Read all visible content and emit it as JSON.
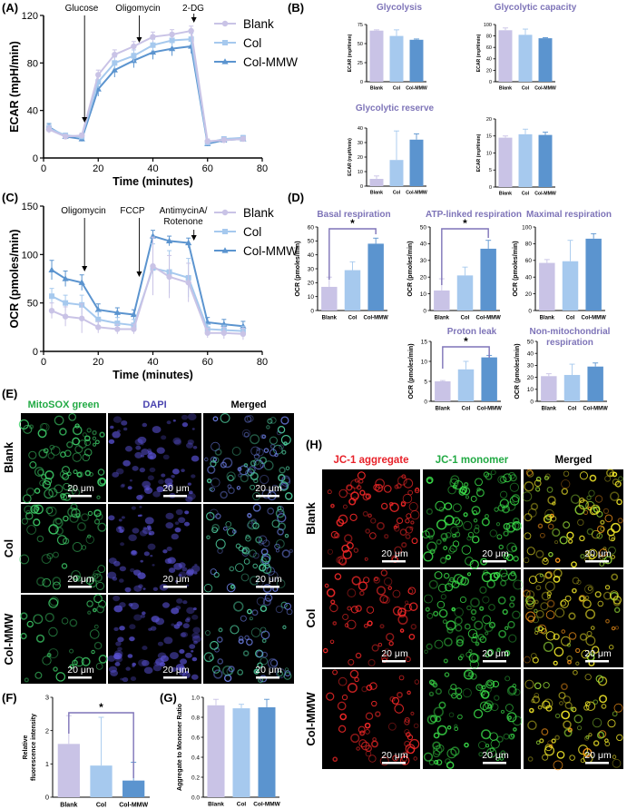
{
  "colors": {
    "blank": "#c9c3e6",
    "col": "#a6c9ee",
    "colmmw": "#5b94cf",
    "title_purple": "#7e74b8",
    "mito_green": "#22aa44",
    "dapi_blue": "#4b45b0",
    "jc_red": "#e8222a",
    "jc_green": "#22aa44",
    "micro_bg": "#000000"
  },
  "legend": [
    "Blank",
    "Col",
    "Col-MMW"
  ],
  "chart_data": [
    {
      "id": "A",
      "type": "line",
      "panel_label": "(A)",
      "xlabel": "Time (minutes)",
      "ylabel": "ECAR (mpH/min)",
      "xlim": [
        0,
        80
      ],
      "ylim": [
        0,
        120
      ],
      "xticks": [
        0,
        20,
        40,
        60,
        80
      ],
      "yticks": [
        0,
        40,
        80,
        120
      ],
      "x": [
        2,
        8,
        14,
        20,
        26,
        33,
        40,
        47,
        54,
        60,
        66,
        73
      ],
      "series": [
        {
          "name": "Blank",
          "values": [
            24,
            18,
            19,
            70,
            87,
            94,
            102,
            104,
            107,
            14,
            15,
            16
          ],
          "err": [
            3,
            2,
            2,
            4,
            4,
            4,
            4,
            4,
            4,
            2,
            2,
            2
          ]
        },
        {
          "name": "Col",
          "values": [
            25,
            19,
            18,
            64,
            80,
            86,
            95,
            99,
            100,
            13,
            16,
            17
          ],
          "err": [
            3,
            2,
            2,
            5,
            5,
            5,
            5,
            5,
            5,
            2,
            2,
            2
          ]
        },
        {
          "name": "Col-MMW",
          "values": [
            26,
            18,
            16,
            58,
            74,
            82,
            89,
            92,
            94,
            12,
            15,
            16
          ],
          "err": [
            3,
            2,
            2,
            6,
            6,
            6,
            6,
            6,
            6,
            2,
            2,
            2
          ]
        }
      ],
      "annotations": [
        {
          "label": "Glucose",
          "x": 15
        },
        {
          "label": "Oligomycin",
          "x": 35
        },
        {
          "label": "2-DG",
          "x": 55
        }
      ]
    },
    {
      "id": "C",
      "type": "line",
      "panel_label": "(C)",
      "xlabel": "Time (minutes)",
      "ylabel": "OCR (pmoles/min)",
      "xlim": [
        0,
        80
      ],
      "ylim": [
        0,
        150
      ],
      "xticks": [
        0,
        20,
        40,
        60,
        80
      ],
      "yticks": [
        0,
        50,
        100,
        150
      ],
      "x": [
        3,
        8,
        14,
        20,
        27,
        33,
        40,
        46,
        53,
        60,
        66,
        73
      ],
      "series": [
        {
          "name": "Blank",
          "values": [
            42,
            36,
            34,
            25,
            23,
            23,
            88,
            77,
            71,
            19,
            19,
            18
          ],
          "err": [
            8,
            10,
            15,
            6,
            5,
            5,
            30,
            22,
            20,
            5,
            6,
            6
          ]
        },
        {
          "name": "Col",
          "values": [
            57,
            50,
            48,
            33,
            29,
            27,
            86,
            82,
            76,
            23,
            22,
            21
          ],
          "err": [
            8,
            8,
            10,
            8,
            6,
            6,
            25,
            22,
            20,
            5,
            5,
            5
          ]
        },
        {
          "name": "Col-MMW",
          "values": [
            84,
            75,
            71,
            43,
            40,
            38,
            119,
            114,
            112,
            30,
            28,
            26
          ],
          "err": [
            10,
            8,
            8,
            6,
            5,
            5,
            6,
            5,
            5,
            5,
            5,
            5
          ]
        }
      ],
      "annotations": [
        {
          "label": "Oligomycin",
          "x": 15
        },
        {
          "label": "FCCP",
          "x": 35
        },
        {
          "label": "AntimycinA/",
          "label2": "Rotenone",
          "x": 55
        }
      ]
    },
    {
      "id": "B",
      "type": "bar",
      "panel_label": "(B)",
      "subplots": [
        {
          "title": "Glycolysis",
          "ylabel": "ECAR (mpH/min)",
          "ylim": [
            0,
            75
          ],
          "yticks": [
            0,
            25,
            50,
            75
          ],
          "values": [
            67,
            60,
            55
          ],
          "err": [
            1,
            8,
            1
          ]
        },
        {
          "title": "Glycolytic capacity",
          "ylabel": "ECAR (mpH/min)",
          "ylim": [
            0,
            100
          ],
          "yticks": [
            0,
            20,
            40,
            60,
            80,
            100
          ],
          "values": [
            90,
            82,
            76
          ],
          "err": [
            4,
            10,
            1
          ]
        },
        {
          "title": "Glycolytic reserve",
          "ylabel": "ECAR (mpH/min)",
          "ylim": [
            0,
            40
          ],
          "yticks": [
            0,
            10,
            20,
            30,
            40
          ],
          "values": [
            5,
            18,
            32
          ],
          "err": [
            2,
            20,
            4
          ]
        },
        {
          "title": "",
          "ylabel": "ECAR (mpH/min)",
          "ylim": [
            0,
            20
          ],
          "yticks": [
            0,
            5,
            10,
            15,
            20
          ],
          "values": [
            14.5,
            15.5,
            15.3
          ],
          "err": [
            0.5,
            1.5,
            0.8
          ]
        }
      ]
    },
    {
      "id": "D",
      "type": "bar",
      "panel_label": "(D)",
      "subplots": [
        {
          "title": "Basal respiration",
          "ylabel": "OCR (pmoles/min)",
          "ylim": [
            0,
            60
          ],
          "yticks": [
            0,
            10,
            20,
            30,
            40,
            50,
            60
          ],
          "values": [
            17,
            29,
            48
          ],
          "err": [
            7,
            6,
            4
          ],
          "sig": [
            0,
            2,
            "*"
          ]
        },
        {
          "title": "ATP-linked respiration",
          "ylabel": "OCR (pmoles/min)",
          "ylim": [
            0,
            50
          ],
          "yticks": [
            0,
            10,
            20,
            30,
            40,
            50
          ],
          "values": [
            12,
            21,
            37
          ],
          "err": [
            7,
            5,
            5
          ],
          "sig": [
            0,
            2,
            "*"
          ]
        },
        {
          "title": "Maximal respiration",
          "ylabel": "OCR (pmoles/min)",
          "ylim": [
            0,
            100
          ],
          "yticks": [
            0,
            20,
            40,
            60,
            80,
            100
          ],
          "values": [
            57,
            59,
            86
          ],
          "err": [
            4,
            25,
            6
          ]
        },
        {
          "title": "Proton leak",
          "ylabel": "OCR (pmoles/min)",
          "ylim": [
            0,
            15
          ],
          "yticks": [
            0,
            5,
            10,
            15
          ],
          "values": [
            5,
            8,
            11
          ],
          "err": [
            0.2,
            2,
            0.5
          ],
          "sig": [
            0,
            2,
            "*"
          ]
        },
        {
          "title": "Non-mitochondrial",
          "title2": "respiration",
          "ylabel": "OCR (pmoles/min)",
          "ylim": [
            0,
            50
          ],
          "yticks": [
            0,
            10,
            20,
            30,
            40,
            50
          ],
          "values": [
            21,
            22,
            29
          ],
          "err": [
            2,
            9,
            3
          ]
        }
      ]
    },
    {
      "id": "F",
      "type": "bar",
      "panel_label": "(F)",
      "ylabel": "Relative",
      "ylabel2": "fluorescence intensity",
      "ylim": [
        0,
        3
      ],
      "yticks": [
        0,
        1,
        2,
        3
      ],
      "categories": [
        "Blank",
        "Col",
        "Col-MMW"
      ],
      "values": [
        1.6,
        0.95,
        0.5
      ],
      "err": [
        0.85,
        1.45,
        0.55
      ],
      "sig": [
        0,
        2,
        "*"
      ]
    },
    {
      "id": "G",
      "type": "bar",
      "panel_label": "(G)",
      "ylabel": "Aggregate to Monomer Ratio",
      "ylim": [
        0,
        1.0
      ],
      "yticks": [
        0.0,
        0.2,
        0.4,
        0.6,
        0.8,
        1.0
      ],
      "categories": [
        "Blank",
        "Col",
        "Col-MMW"
      ],
      "values": [
        0.92,
        0.89,
        0.9
      ],
      "err": [
        0.06,
        0.04,
        0.08
      ]
    }
  ],
  "categories": [
    "Blank",
    "Col",
    "Col-MMW"
  ],
  "micro_E": {
    "panel_label": "(E)",
    "cols": [
      "MitoSOX green",
      "DAPI",
      "Merged"
    ],
    "rows": [
      "Blank",
      "Col",
      "Col-MMW"
    ],
    "scale": "20 μm"
  },
  "micro_H": {
    "panel_label": "(H)",
    "cols": [
      "JC-1 aggregate",
      "JC-1 monomer",
      "Merged"
    ],
    "rows": [
      "Blank",
      "Col",
      "Col-MMW"
    ],
    "scale": "20 μm"
  }
}
